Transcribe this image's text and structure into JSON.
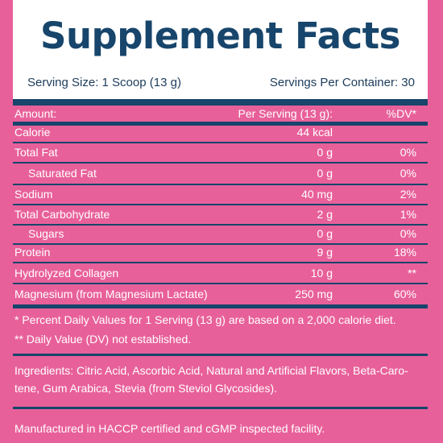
{
  "title": "Supplement Facts",
  "serving_size": "Serving Size: 1 Scoop (13 g)",
  "servings_per_container": "Servings Per Container: 30",
  "header_row": {
    "name": "Amount:",
    "amount": "Per Serving (13 g):",
    "dv": "%DV*"
  },
  "rows": [
    {
      "name": "Calorie",
      "amount": "44 kcal",
      "dv": ""
    },
    {
      "name": "Total Fat",
      "amount": "0 g",
      "dv": "0%"
    },
    {
      "name": "Saturated Fat",
      "amount": "0 g",
      "dv": "0%"
    },
    {
      "name": "Sodium",
      "amount": "40 mg",
      "dv": "2%"
    },
    {
      "name": "Total Carbohydrate",
      "amount": "2 g",
      "dv": "1%"
    },
    {
      "name": "Sugars",
      "amount": "0 g",
      "dv": "0%"
    },
    {
      "name": "Protein",
      "amount": "9 g",
      "dv": "18%"
    },
    {
      "name": "Hydrolyzed Collagen",
      "amount": "10 g",
      "dv": "**"
    },
    {
      "name": "Magnesium (from Magnesium Lactate)",
      "amount": "250 mg",
      "dv": "60%"
    }
  ],
  "footnote_1": "* Percent Daily Values for 1 Serving (13 g) are based on a 2,000 calorie diet.",
  "footnote_2": "** Daily Value (DV) not established.",
  "ingredients_line_1": "Ingredients: Citric Acid, Ascorbic Acid, Natural and Artificial Flavors, Beta-Caro-",
  "ingredients_line_2": "tene, Gum Arabica, Stevia (from Steviol Glycosides).",
  "manufactured": "Manufactured in HACCP certified and cGMP inspected facility.",
  "colors": {
    "background": "#e8609a",
    "navy": "#17456b",
    "white": "#ffffff"
  }
}
